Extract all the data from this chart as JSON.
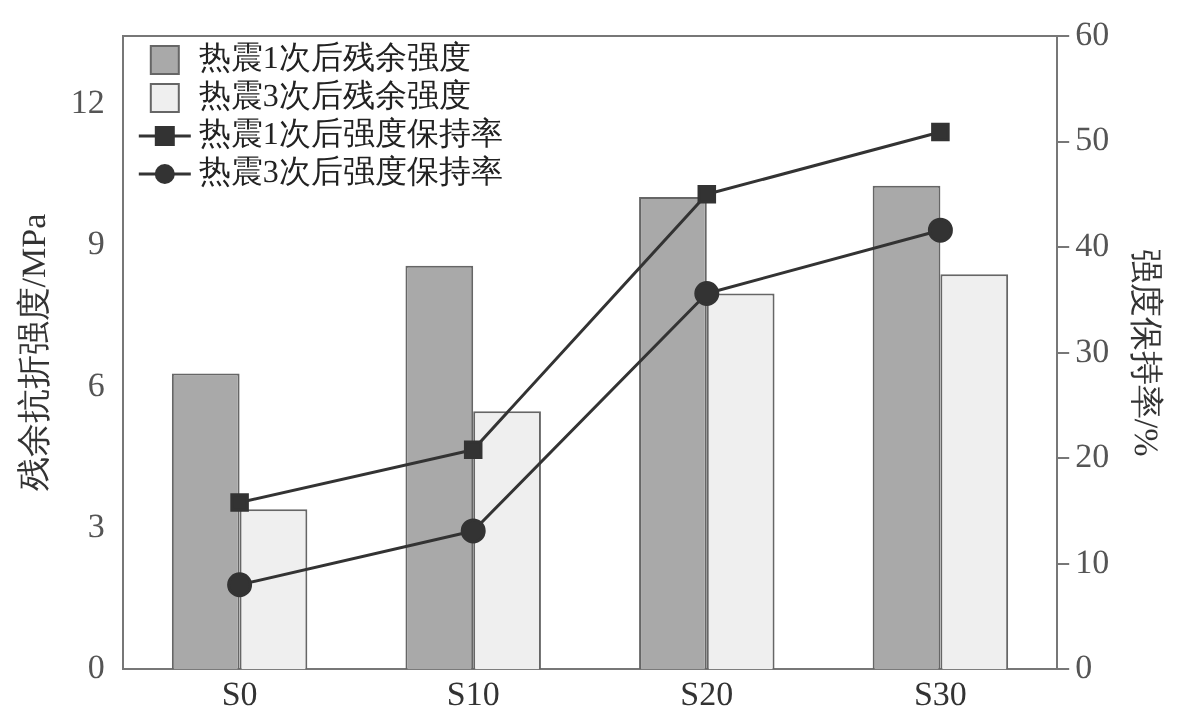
{
  "chart_data": {
    "type": "bar",
    "categories": [
      "S0",
      "S10",
      "S20",
      "S30"
    ],
    "ylabel": "残余抗折强度/MPa",
    "y2label": "强度保持率/%",
    "ylim": [
      0,
      13.45
    ],
    "yticks": [
      0,
      3,
      6,
      9,
      12
    ],
    "y2lim": [
      0,
      60
    ],
    "y2ticks": [
      0,
      10,
      20,
      30,
      40,
      50,
      60
    ],
    "legend": "top left",
    "grid": false,
    "series": [
      {
        "name": "热震1次后残余强度",
        "color": "#a9a9a9",
        "values": [
          6.28,
          8.57,
          10.03,
          10.27
        ]
      },
      {
        "name": "热震3次后残余强度",
        "color": "#efefef",
        "values": [
          3.4,
          5.48,
          7.98,
          8.39
        ]
      },
      {
        "name": "热震1次后强度保持率",
        "type": "line",
        "axis": "y2",
        "marker": "square",
        "color": "#333333",
        "values": [
          15.8,
          20.8,
          45.0,
          50.9
        ]
      },
      {
        "name": "热震3次后强度保持率",
        "type": "line",
        "axis": "y2",
        "marker": "circle",
        "color": "#333333",
        "values": [
          8.0,
          13.1,
          35.6,
          41.6
        ]
      }
    ]
  }
}
